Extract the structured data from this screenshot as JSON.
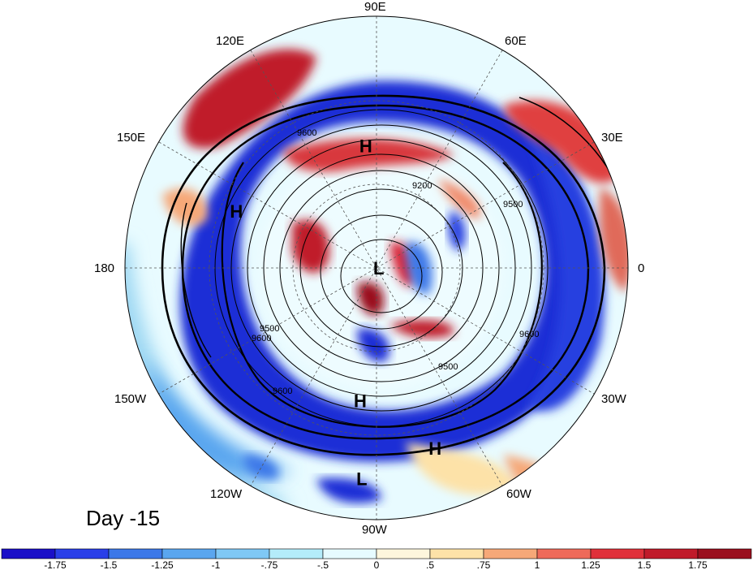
{
  "figure": {
    "day_label": "Day -15",
    "longitude_labels": [
      "90E",
      "60E",
      "120E",
      "150E",
      "30E",
      "180",
      "0",
      "150W",
      "30W",
      "120W",
      "60W",
      "90W"
    ],
    "pressure_systems": [
      {
        "type": "H",
        "lon_deg": 95,
        "lat_deg": 38
      },
      {
        "type": "H",
        "lon_deg": 158,
        "lat_deg": 28
      },
      {
        "type": "L",
        "lon_deg": -5,
        "lat_deg": 89
      },
      {
        "type": "H",
        "lon_deg": -97,
        "lat_deg": 34
      },
      {
        "type": "H",
        "lon_deg": -72,
        "lat_deg": 16
      },
      {
        "type": "L",
        "lon_deg": -94,
        "lat_deg": 10
      }
    ],
    "contour_labels": [
      "9600",
      "9500",
      "9200",
      "9600",
      "9500",
      "9600",
      "9600",
      "9500"
    ],
    "colorbar": {
      "ticks": [
        "-1.75",
        "-1.5",
        "-1.25",
        "-1",
        "-.75",
        "-.5",
        "0",
        ".5",
        ".75",
        "1",
        "1.25",
        "1.5",
        "1.75"
      ],
      "colors": [
        "#1a0fc8",
        "#2a3fe8",
        "#3c78e8",
        "#5aa6ef",
        "#7fc8f5",
        "#b4ecfa",
        "#e6fbff",
        "#fdf6dd",
        "#fde2a8",
        "#f6a878",
        "#ee6a5a",
        "#e0303a",
        "#c01a2a",
        "#9a0f1e"
      ]
    },
    "colors": {
      "strong_neg": "#1a1ad0",
      "neg": "#3c78e8",
      "weak_neg": "#b4ecfa",
      "neutral": "#eefcff",
      "weak_pos": "#fde2a8",
      "pos": "#ee6a5a",
      "strong_pos": "#a0101e"
    }
  }
}
